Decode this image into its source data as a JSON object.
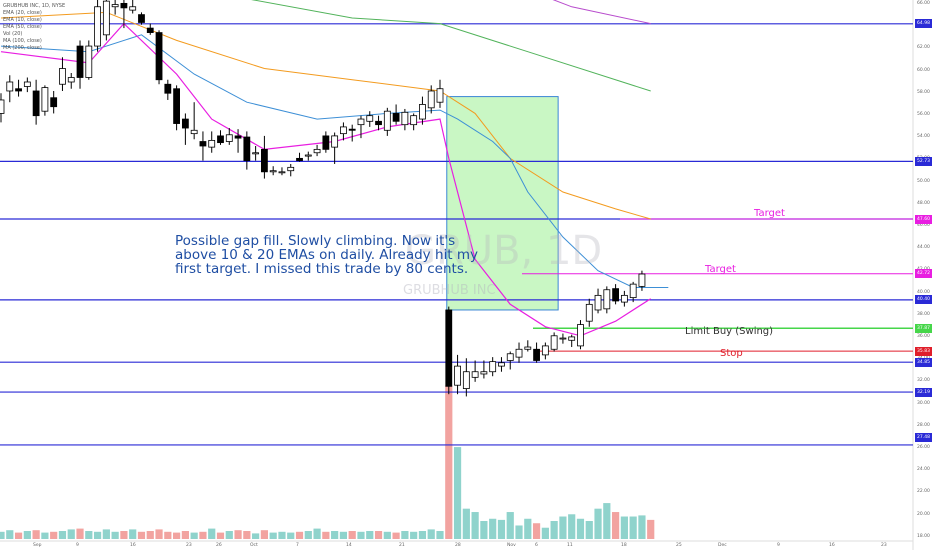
{
  "header": {
    "symbol_line": "GRUBHUB INC, 1D, NYSE",
    "indicators": [
      "EMA (20, close)",
      "EMA (10, close)",
      "EMA (50, close)",
      "Vol (20)",
      "MA (100, close)",
      "MA (200, close)"
    ]
  },
  "watermark": {
    "symbol": "GRUB, 1D",
    "name": "GRUBHUB INC"
  },
  "annotation": "Possible gap fill. Slowly climbing. Now it's above 10 & 20 EMAs on daily. Already hit my first target. I missed this trade by 80 cents.",
  "labels": {
    "target_upper": "Target",
    "target_lower": "Target",
    "limit_buy": "Limit Buy (Swing)",
    "stop": "Stop"
  },
  "colors": {
    "up_candle": "#ffffff",
    "down_candle": "#000000",
    "hline": "#2a2ad6",
    "ema10": "#e81ee1",
    "ema20": "#3d8fd6",
    "ema50": "#f39b1f",
    "ma100": "#52b35b",
    "ma200": "#b84ccd",
    "box_fill": "#c9f7c4",
    "target_line": "#e81ee1",
    "limit_buy": "#46d64a",
    "stop": "#e01e2a"
  },
  "chart_data": {
    "type": "candlestick",
    "x_tick_labels": [
      "Sep",
      "9",
      "16",
      "23",
      "26",
      "Oct",
      "7",
      "14",
      "21",
      "28",
      "Nov",
      "6",
      "11",
      "18",
      "25",
      "Dec",
      "9",
      "16",
      "23"
    ],
    "y_axis_labels": [
      "66.00",
      "64.00",
      "62.00",
      "60.00",
      "58.00",
      "56.00",
      "54.00",
      "52.00",
      "50.00",
      "48.00",
      "46.00",
      "44.00",
      "42.00",
      "40.00",
      "38.00",
      "36.00",
      "34.00",
      "32.00",
      "30.00",
      "28.00",
      "26.00",
      "24.00",
      "22.00",
      "20.00",
      "18.00"
    ],
    "price_tags": [
      {
        "value": "64.98",
        "color": "#2a2ad6"
      },
      {
        "value": "52.73",
        "color": "#2a2ad6"
      },
      {
        "value": "47.60",
        "color": "#e81ee1"
      },
      {
        "value": "42.72",
        "color": "#e81ee1"
      },
      {
        "value": "40.40",
        "color": "#2a2ad6"
      },
      {
        "value": "37.87",
        "color": "#46d64a"
      },
      {
        "value": "35.83",
        "color": "#e01e2a"
      },
      {
        "value": "34.85",
        "color": "#2a2ad6"
      },
      {
        "value": "32.19",
        "color": "#2a2ad6"
      },
      {
        "value": "27.48",
        "color": "#2a2ad6"
      }
    ],
    "horizontal_levels": [
      64.98,
      52.73,
      47.6,
      40.4,
      34.85,
      32.19,
      27.48
    ],
    "target_levels": [
      47.6,
      42.72
    ],
    "limit_buy": 37.87,
    "stop": 35.83,
    "candles": [
      {
        "o": 57.0,
        "h": 58.8,
        "l": 56.2,
        "c": 58.2
      },
      {
        "o": 59.0,
        "h": 60.4,
        "l": 58.0,
        "c": 59.8
      },
      {
        "o": 59.2,
        "h": 60.0,
        "l": 58.5,
        "c": 59.0
      },
      {
        "o": 59.4,
        "h": 60.2,
        "l": 58.9,
        "c": 59.8
      },
      {
        "o": 59.0,
        "h": 60.0,
        "l": 56.0,
        "c": 56.8
      },
      {
        "o": 57.2,
        "h": 59.5,
        "l": 56.8,
        "c": 59.3
      },
      {
        "o": 58.4,
        "h": 59.0,
        "l": 57.0,
        "c": 57.6
      },
      {
        "o": 59.6,
        "h": 62.0,
        "l": 59.0,
        "c": 61.0
      },
      {
        "o": 59.8,
        "h": 60.6,
        "l": 59.2,
        "c": 60.2
      },
      {
        "o": 63.0,
        "h": 63.5,
        "l": 59.2,
        "c": 60.2
      },
      {
        "o": 60.2,
        "h": 63.5,
        "l": 60.0,
        "c": 63.0
      },
      {
        "o": 63.0,
        "h": 67.5,
        "l": 62.5,
        "c": 66.5
      },
      {
        "o": 64.0,
        "h": 67.5,
        "l": 63.5,
        "c": 67.0
      },
      {
        "o": 66.5,
        "h": 67.2,
        "l": 65.8,
        "c": 66.7
      },
      {
        "o": 66.8,
        "h": 67.4,
        "l": 64.6,
        "c": 66.4
      },
      {
        "o": 66.2,
        "h": 67.5,
        "l": 65.9,
        "c": 66.5
      },
      {
        "o": 65.8,
        "h": 66.0,
        "l": 64.9,
        "c": 65.1
      },
      {
        "o": 64.6,
        "h": 65.0,
        "l": 64.0,
        "c": 64.2
      },
      {
        "o": 64.2,
        "h": 64.4,
        "l": 59.6,
        "c": 60.0
      },
      {
        "o": 59.6,
        "h": 60.0,
        "l": 58.2,
        "c": 58.8
      },
      {
        "o": 59.2,
        "h": 59.5,
        "l": 55.5,
        "c": 56.1
      },
      {
        "o": 56.5,
        "h": 57.0,
        "l": 54.2,
        "c": 55.7
      },
      {
        "o": 55.2,
        "h": 58.0,
        "l": 54.7,
        "c": 55.5
      },
      {
        "o": 54.5,
        "h": 55.4,
        "l": 52.8,
        "c": 54.1
      },
      {
        "o": 54.0,
        "h": 55.4,
        "l": 53.5,
        "c": 54.6
      },
      {
        "o": 55.0,
        "h": 55.5,
        "l": 54.2,
        "c": 54.4
      },
      {
        "o": 54.5,
        "h": 55.7,
        "l": 54.2,
        "c": 55.1
      },
      {
        "o": 55.0,
        "h": 55.6,
        "l": 53.5,
        "c": 54.8
      },
      {
        "o": 54.9,
        "h": 55.4,
        "l": 52.0,
        "c": 52.8
      },
      {
        "o": 53.4,
        "h": 54.1,
        "l": 52.8,
        "c": 53.5
      },
      {
        "o": 53.8,
        "h": 55.0,
        "l": 51.2,
        "c": 51.8
      },
      {
        "o": 51.8,
        "h": 52.3,
        "l": 51.5,
        "c": 51.9
      },
      {
        "o": 51.8,
        "h": 52.2,
        "l": 51.5,
        "c": 51.8
      },
      {
        "o": 51.9,
        "h": 52.5,
        "l": 51.4,
        "c": 52.2
      },
      {
        "o": 53.0,
        "h": 53.5,
        "l": 52.7,
        "c": 52.8
      },
      {
        "o": 53.2,
        "h": 53.6,
        "l": 52.8,
        "c": 53.3
      },
      {
        "o": 53.5,
        "h": 54.2,
        "l": 53.2,
        "c": 53.8
      },
      {
        "o": 55.0,
        "h": 55.4,
        "l": 53.5,
        "c": 53.8
      },
      {
        "o": 54.0,
        "h": 55.3,
        "l": 52.5,
        "c": 55.0
      },
      {
        "o": 55.2,
        "h": 56.2,
        "l": 54.6,
        "c": 55.8
      },
      {
        "o": 55.6,
        "h": 56.0,
        "l": 54.5,
        "c": 55.5
      },
      {
        "o": 56.0,
        "h": 56.8,
        "l": 54.8,
        "c": 56.5
      },
      {
        "o": 56.3,
        "h": 57.2,
        "l": 55.8,
        "c": 56.8
      },
      {
        "o": 56.3,
        "h": 56.8,
        "l": 55.5,
        "c": 56.0
      },
      {
        "o": 55.5,
        "h": 57.5,
        "l": 55.0,
        "c": 57.2
      },
      {
        "o": 57.0,
        "h": 57.8,
        "l": 56.0,
        "c": 56.3
      },
      {
        "o": 56.0,
        "h": 57.4,
        "l": 55.5,
        "c": 57.1
      },
      {
        "o": 56.0,
        "h": 57.0,
        "l": 55.5,
        "c": 56.8
      },
      {
        "o": 56.5,
        "h": 58.5,
        "l": 56.0,
        "c": 57.8
      },
      {
        "o": 57.5,
        "h": 59.5,
        "l": 57.0,
        "c": 59.0
      },
      {
        "o": 58.0,
        "h": 60.0,
        "l": 57.5,
        "c": 59.2
      },
      {
        "o": 39.5,
        "h": 39.8,
        "l": 32.0,
        "c": 32.7
      },
      {
        "o": 32.8,
        "h": 35.5,
        "l": 32.0,
        "c": 34.5
      },
      {
        "o": 32.5,
        "h": 35.2,
        "l": 31.8,
        "c": 34.0
      },
      {
        "o": 33.5,
        "h": 35.0,
        "l": 33.1,
        "c": 34.0
      },
      {
        "o": 33.8,
        "h": 35.0,
        "l": 33.4,
        "c": 34.0
      },
      {
        "o": 34.0,
        "h": 35.3,
        "l": 33.6,
        "c": 34.9
      },
      {
        "o": 34.5,
        "h": 35.3,
        "l": 34.0,
        "c": 34.8
      },
      {
        "o": 35.0,
        "h": 35.8,
        "l": 34.2,
        "c": 35.6
      },
      {
        "o": 35.3,
        "h": 36.6,
        "l": 34.8,
        "c": 36.0
      },
      {
        "o": 36.0,
        "h": 36.8,
        "l": 35.8,
        "c": 36.2
      },
      {
        "o": 36.0,
        "h": 36.6,
        "l": 34.8,
        "c": 35.0
      },
      {
        "o": 35.5,
        "h": 36.6,
        "l": 35.1,
        "c": 36.3
      },
      {
        "o": 36.0,
        "h": 37.5,
        "l": 35.8,
        "c": 37.2
      },
      {
        "o": 37.0,
        "h": 37.4,
        "l": 36.5,
        "c": 37.0
      },
      {
        "o": 36.8,
        "h": 37.3,
        "l": 36.2,
        "c": 37.1
      },
      {
        "o": 36.3,
        "h": 38.6,
        "l": 36.0,
        "c": 38.2
      },
      {
        "o": 38.5,
        "h": 40.5,
        "l": 38.0,
        "c": 40.0
      },
      {
        "o": 39.5,
        "h": 41.4,
        "l": 39.2,
        "c": 40.8
      },
      {
        "o": 39.6,
        "h": 41.6,
        "l": 39.2,
        "c": 41.3
      },
      {
        "o": 41.4,
        "h": 41.8,
        "l": 40.0,
        "c": 40.3
      },
      {
        "o": 40.2,
        "h": 41.2,
        "l": 39.8,
        "c": 40.8
      },
      {
        "o": 40.6,
        "h": 42.0,
        "l": 40.2,
        "c": 41.8
      },
      {
        "o": 41.6,
        "h": 43.0,
        "l": 41.2,
        "c": 42.7
      }
    ],
    "volume": [
      0.9,
      1.1,
      0.8,
      1.0,
      1.1,
      0.8,
      0.9,
      1.0,
      1.2,
      1.3,
      1.0,
      0.9,
      1.2,
      0.9,
      1.0,
      1.2,
      0.9,
      1.0,
      1.2,
      0.9,
      0.8,
      1.0,
      0.8,
      0.9,
      1.3,
      0.8,
      1.0,
      1.1,
      1.0,
      0.7,
      1.1,
      0.8,
      0.9,
      0.8,
      0.9,
      1.0,
      1.3,
      0.9,
      1.0,
      0.9,
      1.0,
      0.9,
      1.0,
      1.0,
      0.9,
      0.8,
      1.0,
      0.9,
      1.0,
      1.2,
      1.0,
      31.5,
      26.0,
      20.5,
      20.2,
      19.4,
      19.6,
      19.5,
      20.2,
      19.0,
      19.6,
      19.2,
      18.8,
      19.4,
      19.8,
      20.0,
      19.6,
      19.4,
      20.5,
      21.0,
      20.2,
      19.8,
      19.8,
      19.9,
      19.5
    ],
    "ema10": [
      [
        0,
        62.5
      ],
      [
        10,
        61.5
      ],
      [
        14,
        65.0
      ],
      [
        20,
        60.5
      ],
      [
        24,
        56.5
      ],
      [
        30,
        53.8
      ],
      [
        38,
        54.5
      ],
      [
        44,
        55.8
      ],
      [
        50,
        56.5
      ],
      [
        51,
        53.0
      ],
      [
        54,
        44.0
      ],
      [
        58,
        40.0
      ],
      [
        62,
        38.0
      ],
      [
        66,
        37.2
      ],
      [
        70,
        38.5
      ],
      [
        74,
        40.5
      ]
    ],
    "ema20": [
      [
        0,
        63.0
      ],
      [
        10,
        62.5
      ],
      [
        16,
        64.0
      ],
      [
        22,
        60.5
      ],
      [
        28,
        58.0
      ],
      [
        36,
        56.5
      ],
      [
        44,
        57.0
      ],
      [
        50,
        57.3
      ],
      [
        52,
        56.5
      ],
      [
        56,
        54.5
      ],
      [
        58,
        53.0
      ],
      [
        60,
        50.0
      ],
      [
        64,
        46.0
      ],
      [
        68,
        43.0
      ],
      [
        72,
        41.5
      ],
      [
        76,
        41.5
      ]
    ],
    "ema50": [
      [
        0,
        65.5
      ],
      [
        12,
        66.0
      ],
      [
        20,
        63.5
      ],
      [
        30,
        61.0
      ],
      [
        40,
        60.0
      ],
      [
        50,
        59.0
      ],
      [
        54,
        57.0
      ],
      [
        58,
        53.0
      ],
      [
        64,
        50.0
      ],
      [
        70,
        48.5
      ],
      [
        74,
        47.6
      ]
    ],
    "ma100": [
      [
        0,
        69.5
      ],
      [
        12,
        69.0
      ],
      [
        26,
        67.5
      ],
      [
        40,
        65.5
      ],
      [
        50,
        65.0
      ],
      [
        60,
        62.5
      ],
      [
        74,
        59.0
      ]
    ],
    "ma200": [
      [
        55,
        69.5
      ],
      [
        65,
        66.5
      ],
      [
        74,
        65.0
      ]
    ]
  }
}
